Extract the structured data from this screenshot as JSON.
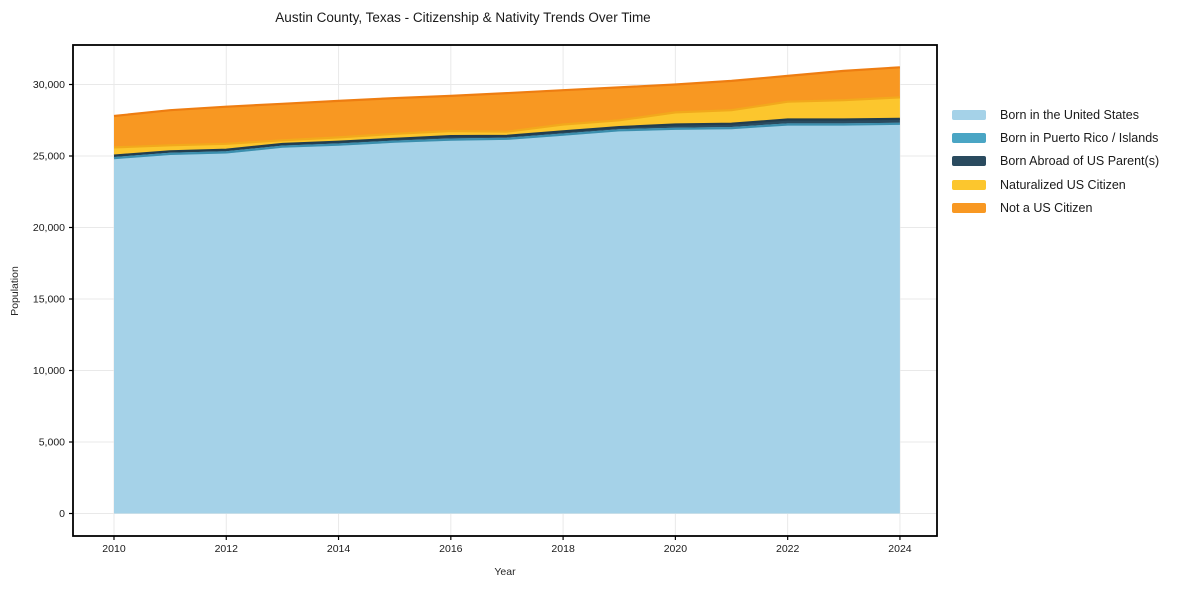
{
  "figure": {
    "background": "#ffffff"
  },
  "colors": {
    "grid": "#e9e9e9",
    "axis": "#000000",
    "text": "#1a1a1a"
  },
  "chart_data": {
    "type": "area",
    "stacked": true,
    "title": "Austin County, Texas - Citizenship & Nativity Trends Over Time",
    "xlabel": "Year",
    "ylabel": "Population",
    "grid": true,
    "legend_position": "right",
    "xlim": [
      2009.27,
      2024.66
    ],
    "ylim": [
      0,
      30000
    ],
    "x": [
      2010,
      2011,
      2012,
      2013,
      2014,
      2015,
      2016,
      2017,
      2018,
      2019,
      2020,
      2021,
      2022,
      2023,
      2024
    ],
    "series": [
      {
        "name": "Born in the United States",
        "color": "#a5d2e8",
        "edge_color": "#90c3dd",
        "values": [
          24850,
          25150,
          25250,
          25650,
          25800,
          26000,
          26150,
          26200,
          26500,
          26800,
          26900,
          26950,
          27200,
          27200,
          27250
        ]
      },
      {
        "name": "Born in Puerto Rico / Islands",
        "color": "#4aa5c4",
        "edge_color": "#3b8fae",
        "values": [
          0,
          0,
          0,
          0,
          0,
          0,
          0,
          0,
          0,
          0,
          0,
          0,
          0,
          0,
          0
        ]
      },
      {
        "name": "Born Abroad of US Parent(s)",
        "color": "#2a4b5f",
        "edge_color": "#223d4e",
        "values": [
          180,
          180,
          190,
          190,
          200,
          200,
          240,
          210,
          220,
          220,
          300,
          310,
          350,
          350,
          350
        ]
      },
      {
        "name": "Naturalized US Citizen",
        "color": "#fcc62d",
        "edge_color": "#f2a91c",
        "values": [
          570,
          420,
          410,
          260,
          300,
          350,
          360,
          290,
          480,
          480,
          850,
          940,
          1250,
          1350,
          1500
        ]
      },
      {
        "name": "Not a US Citizen",
        "color": "#f89822",
        "edge_color": "#ee7d11",
        "values": [
          2200,
          2450,
          2600,
          2550,
          2550,
          2500,
          2450,
          2700,
          2400,
          2300,
          1950,
          2050,
          1800,
          2050,
          2100
        ]
      }
    ],
    "x_ticks": {
      "values": [
        2010,
        2012,
        2014,
        2016,
        2018,
        2020,
        2022,
        2024
      ],
      "labels": [
        "2010",
        "2012",
        "2014",
        "2016",
        "2018",
        "2020",
        "2022",
        "2024"
      ]
    },
    "y_ticks": {
      "values": [
        0,
        5000,
        10000,
        15000,
        20000,
        25000,
        30000
      ],
      "labels": [
        "0",
        "5,000",
        "10,000",
        "15,000",
        "20,000",
        "25,000",
        "30,000"
      ]
    }
  }
}
